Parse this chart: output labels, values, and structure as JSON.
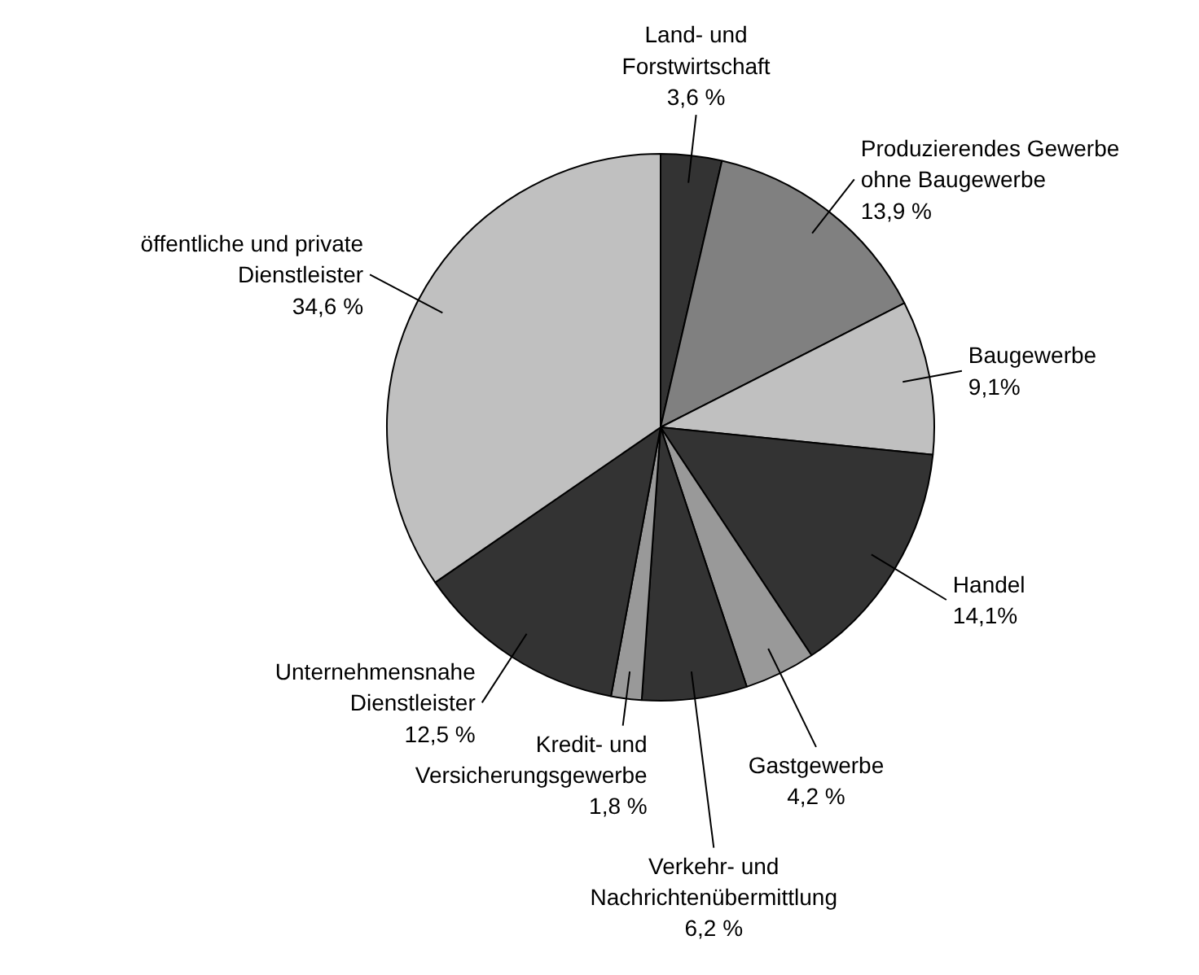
{
  "chart_data": {
    "type": "pie",
    "categories": [
      "Land- und\nForstwirtschaft",
      "Produzierendes Gewerbe\nohne Baugewerbe",
      "Baugewerbe",
      "Handel",
      "Gastgewerbe",
      "Verkehr- und\nNachrichtenübermittlung",
      "Kredit- und\nVersicherungsgewerbe",
      "Unternehmensnahe\nDienstleister",
      "öffentliche und private\nDienstleister"
    ],
    "values": [
      3.6,
      13.9,
      9.1,
      14.1,
      4.2,
      6.2,
      1.8,
      12.5,
      34.6
    ],
    "value_labels": [
      "3,6 %",
      "13,9 %",
      "9,1%",
      "14,1%",
      "4,2 %",
      "6,2 %",
      "1,8 %",
      "12,5 %",
      "34,6 %"
    ],
    "colors": [
      "#333333",
      "#808080",
      "#c0c0c0",
      "#333333",
      "#999999",
      "#333333",
      "#999999",
      "#333333",
      "#c0c0c0"
    ]
  }
}
